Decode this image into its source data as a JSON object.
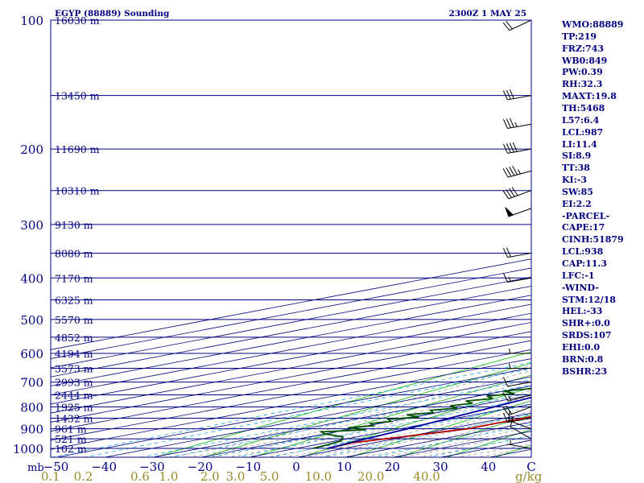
{
  "chart_data": {
    "type": "line",
    "title": "EGYP (88889) Sounding",
    "valid_time": "2300Z  1 MAY 25",
    "x_unit": "C",
    "mixing_unit": "g/kg",
    "y_unit_label": "mb",
    "pressure_ticks": [
      100,
      200,
      300,
      400,
      500,
      600,
      700,
      800,
      900,
      1000
    ],
    "temp_ticks": [
      -50,
      -40,
      -30,
      -20,
      -10,
      0,
      10,
      20,
      30,
      40
    ],
    "temp_tick_labels": [
      "−50",
      "−40",
      "−30",
      "−20",
      "−10",
      "0",
      "10",
      "20",
      "30",
      "40"
    ],
    "mixing_ratio_labels": [
      "0.1",
      "0.2",
      "0.6",
      "1.0",
      "2.0",
      "3.0",
      "5.0",
      "10.0",
      "20.0",
      "40.0"
    ],
    "xlim": [
      -50,
      50
    ],
    "ylim": [
      1050,
      100
    ],
    "y_scale": "log",
    "height_levels": [
      {
        "p": 100,
        "label": "16030 m"
      },
      {
        "p": 150,
        "label": "13450 m"
      },
      {
        "p": 200,
        "label": "11690 m"
      },
      {
        "p": 250,
        "label": "10310 m"
      },
      {
        "p": 300,
        "label": "9130 m"
      },
      {
        "p": 350,
        "label": "8080 m"
      },
      {
        "p": 400,
        "label": "7170 m"
      },
      {
        "p": 450,
        "label": "6325 m"
      },
      {
        "p": 500,
        "label": "5570 m"
      },
      {
        "p": 550,
        "label": "4852 m"
      },
      {
        "p": 600,
        "label": "4194 m"
      },
      {
        "p": 650,
        "label": "3573 m"
      },
      {
        "p": 700,
        "label": "2993 m"
      },
      {
        "p": 750,
        "label": "2444 m"
      },
      {
        "p": 800,
        "label": "1925 m"
      },
      {
        "p": 850,
        "label": "1432 m"
      },
      {
        "p": 900,
        "label": "961 m"
      },
      {
        "p": 950,
        "label": "521 m"
      },
      {
        "p": 1000,
        "label": "102 m"
      }
    ],
    "series": [
      {
        "key": "temperature",
        "color": "#b00000",
        "points": [
          [
            1000,
            6.5
          ],
          [
            970,
            5.5
          ],
          [
            930,
            10.5
          ],
          [
            900,
            14
          ],
          [
            870,
            14
          ],
          [
            850,
            14
          ],
          [
            800,
            13
          ],
          [
            770,
            11
          ],
          [
            750,
            10
          ],
          [
            700,
            7
          ],
          [
            680,
            5.5
          ],
          [
            650,
            7.5
          ],
          [
            600,
            6
          ],
          [
            550,
            1
          ],
          [
            500,
            -5
          ],
          [
            450,
            -12
          ],
          [
            400,
            -19
          ],
          [
            350,
            -27
          ],
          [
            300,
            -36
          ],
          [
            250,
            -46
          ],
          [
            220,
            -51
          ],
          [
            200,
            -50
          ],
          [
            180,
            -50
          ],
          [
            150,
            -52
          ],
          [
            125,
            -56
          ],
          [
            100,
            -58
          ]
        ]
      },
      {
        "key": "dewpoint",
        "color": "#005000",
        "points": [
          [
            1000,
            3.5
          ],
          [
            980,
            2.5
          ],
          [
            960,
            1
          ],
          [
            940,
            -3
          ],
          [
            925,
            -10
          ],
          [
            915,
            -13
          ],
          [
            905,
            -6
          ],
          [
            895,
            -12
          ],
          [
            885,
            -9
          ],
          [
            875,
            -12
          ],
          [
            865,
            -10
          ],
          [
            855,
            -13
          ],
          [
            845,
            -9
          ],
          [
            835,
            -14
          ],
          [
            825,
            -11
          ],
          [
            815,
            -14
          ],
          [
            805,
            -11
          ],
          [
            795,
            -15
          ],
          [
            785,
            -13
          ],
          [
            775,
            -17
          ],
          [
            765,
            -14
          ],
          [
            755,
            -18
          ],
          [
            745,
            -15
          ],
          [
            735,
            -20
          ],
          [
            725,
            -17
          ],
          [
            715,
            -15
          ],
          [
            705,
            -16
          ],
          [
            695,
            -17
          ],
          [
            685,
            -19
          ],
          [
            675,
            -15
          ],
          [
            665,
            -18
          ],
          [
            655,
            -13
          ],
          [
            645,
            -19
          ],
          [
            635,
            -14
          ],
          [
            625,
            -20
          ],
          [
            615,
            -18
          ],
          [
            600,
            -24
          ],
          [
            580,
            -19
          ],
          [
            550,
            -14
          ],
          [
            520,
            -10
          ],
          [
            500,
            -7
          ],
          [
            450,
            -11
          ],
          [
            400,
            -16
          ],
          [
            350,
            -27
          ],
          [
            300,
            -40
          ],
          [
            250,
            -52
          ],
          [
            220,
            -58
          ],
          [
            205,
            -60
          ],
          [
            190,
            -66
          ],
          [
            150,
            -71
          ],
          [
            125,
            -72
          ],
          [
            100,
            -75
          ]
        ]
      },
      {
        "key": "parcel",
        "color": "#0000a0",
        "points": [
          [
            1000,
            6.5
          ],
          [
            950,
            4
          ],
          [
            900,
            1.5
          ],
          [
            850,
            -1.5
          ],
          [
            800,
            -4.5
          ],
          [
            750,
            -8
          ],
          [
            700,
            -11
          ],
          [
            650,
            -15
          ],
          [
            600,
            -19
          ],
          [
            550,
            -23
          ],
          [
            500,
            -28
          ],
          [
            450,
            -34
          ],
          [
            400,
            -40
          ],
          [
            350,
            -47
          ],
          [
            300,
            -55
          ],
          [
            250,
            -63
          ],
          [
            200,
            -72
          ],
          [
            150,
            -80
          ],
          [
            100,
            -88
          ]
        ]
      }
    ],
    "wind_barbs": [
      {
        "p": 100,
        "dir": 245,
        "kt": 20
      },
      {
        "p": 150,
        "dir": 260,
        "kt": 30
      },
      {
        "p": 175,
        "dir": 260,
        "kt": 35
      },
      {
        "p": 200,
        "dir": 260,
        "kt": 40
      },
      {
        "p": 225,
        "dir": 255,
        "kt": 45
      },
      {
        "p": 250,
        "dir": 250,
        "kt": 40
      },
      {
        "p": 275,
        "dir": 250,
        "kt": 50
      },
      {
        "p": 350,
        "dir": 260,
        "kt": 20
      },
      {
        "p": 400,
        "dir": 260,
        "kt": 15
      },
      {
        "p": 600,
        "dir": 270,
        "kt": 5
      },
      {
        "p": 650,
        "dir": 270,
        "kt": 5
      },
      {
        "p": 700,
        "dir": 260,
        "kt": 10
      },
      {
        "p": 750,
        "dir": 255,
        "kt": 15
      },
      {
        "p": 800,
        "dir": 250,
        "kt": 20
      },
      {
        "p": 850,
        "dir": 260,
        "kt": 15
      },
      {
        "p": 900,
        "dir": 290,
        "kt": 15
      },
      {
        "p": 950,
        "dir": 300,
        "kt": 10
      },
      {
        "p": 1000,
        "dir": 280,
        "kt": 5
      }
    ],
    "indices": [
      "WMO:88889",
      "TP:219",
      "FRZ:743",
      "WB0:849",
      "PW:0.39",
      "RH:32.3",
      "MAXT:19.8",
      "TH:5468",
      "L57:6.4",
      "LCL:987",
      "LI:11.4",
      "SI:8.9",
      "TT:38",
      "KI:-3",
      "SW:85",
      "EI:2.2",
      "-PARCEL-",
      "CAPE:17",
      "CINH:51879",
      "LCL:938",
      "CAP:11.3",
      "LFC:-1",
      "-WIND-",
      "STM:12/18",
      "HEL:-33",
      "SHR+:0.0",
      "SRDS:107",
      "EHI:0.0",
      "BRN:0.8",
      "BSHR:23"
    ]
  }
}
